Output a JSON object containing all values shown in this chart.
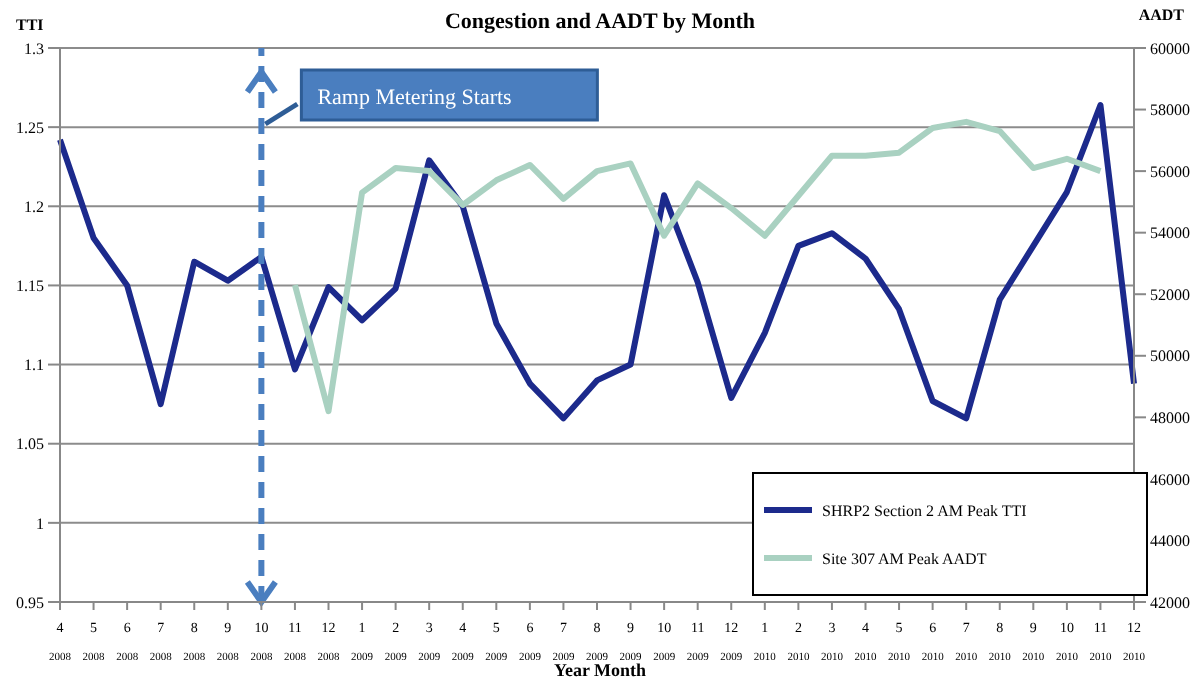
{
  "chart_data": {
    "type": "line",
    "title": "Congestion and AADT by Month",
    "xlabel": "Year Month",
    "ylabel": "TTI",
    "y2label": "AADT",
    "categories": [
      "4 2008",
      "5 2008",
      "6 2008",
      "7 2008",
      "8 2008",
      "9 2008",
      "10 2008",
      "11 2008",
      "12 2008",
      "1 2009",
      "2 2009",
      "3 2009",
      "4 2009",
      "5 2009",
      "6 2009",
      "7 2009",
      "8 2009",
      "9 2009",
      "10 2009",
      "11 2009",
      "12 2009",
      "1 2010",
      "2 2010",
      "3 2010",
      "4 2010",
      "5 2010",
      "6 2010",
      "7 2010",
      "8 2010",
      "9 2010",
      "10 2010",
      "11 2010",
      "12 2010"
    ],
    "series": [
      {
        "name": "SHRP2 Section 2 AM Peak TTI",
        "color": "#1c2a8c",
        "values": [
          1.242,
          1.18,
          1.15,
          1.075,
          1.165,
          1.153,
          1.168,
          1.097,
          1.149,
          1.128,
          1.148,
          1.229,
          1.2,
          1.126,
          1.088,
          1.066,
          1.09,
          1.1,
          1.207,
          1.152,
          1.079,
          1.12,
          1.175,
          1.183,
          1.167,
          1.135,
          1.077,
          1.066,
          1.141,
          1.175,
          1.209,
          1.264,
          1.088
        ]
      },
      {
        "name": "Site 307 AM Peak AADT",
        "color": "#a9d1c1",
        "axis": "y2",
        "values": [
          null,
          null,
          null,
          null,
          null,
          null,
          null,
          52300,
          48200,
          55300,
          56100,
          56000,
          54900,
          55700,
          56200,
          55100,
          56000,
          56250,
          53900,
          55600,
          54800,
          53900,
          55200,
          56500,
          56500,
          56600,
          57400,
          57600,
          57300,
          56100,
          56400,
          56000,
          null
        ]
      }
    ],
    "ylim": [
      0.95,
      1.3
    ],
    "yticks": [
      0.95,
      1,
      1.05,
      1.1,
      1.15,
      1.2,
      1.25,
      1.3
    ],
    "y2lim": [
      42000,
      60000
    ],
    "y2ticks": [
      42000,
      44000,
      46000,
      48000,
      50000,
      52000,
      54000,
      56000,
      58000,
      60000
    ],
    "ref_lines": [
      {
        "axis": "x",
        "value": "10 2008",
        "label": "Ramp Metering Starts",
        "color": "#4a7ebf",
        "line_style": "dashed"
      }
    ],
    "grid": "y",
    "legend": "bottom right",
    "marker": "none",
    "line_style": "solid"
  }
}
